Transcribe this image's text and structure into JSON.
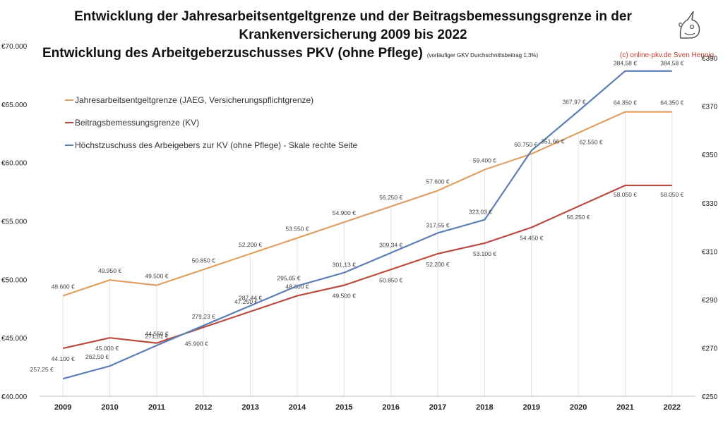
{
  "title_line1": "Entwicklung der Jahresarbeitsentgeltgrenze und der Beitragsbemessungsgrenze in der",
  "title_line2": "Krankenversicherung 2009 bis 2022",
  "title_line3": "Entwicklung des Arbeitgeberzuschusses PKV (ohne Pflege)",
  "note": "(vorläufiger GKV Durchschnittsbeitrag 1,3%)",
  "credit": "(c) online-pkv.de Sven Hennig",
  "chart_data": {
    "type": "line",
    "categories": [
      "2009",
      "2010",
      "2011",
      "2012",
      "2013",
      "2014",
      "2015",
      "2016",
      "2017",
      "2018",
      "2019",
      "2020",
      "2021",
      "2022"
    ],
    "y_left": {
      "min": 40000,
      "max": 70000,
      "ticks": [
        40000,
        45000,
        50000,
        55000,
        60000,
        65000,
        70000
      ],
      "tick_labels": [
        "€40.000",
        "€45.000",
        "€50.000",
        "€55.000",
        "€60.000",
        "€65.000",
        "€70.000"
      ]
    },
    "y_right": {
      "min": 250,
      "max": 395,
      "ticks": [
        250,
        270,
        290,
        310,
        330,
        350,
        370,
        390
      ],
      "tick_labels": [
        "€250",
        "€270",
        "€290",
        "€310",
        "€330",
        "€350",
        "€370",
        "€390"
      ]
    },
    "series": [
      {
        "name": "Jahresarbeitsentgeltgrenze (JAEG, Versicherungspflichtgrenze)",
        "axis": "left",
        "color": "#E0A064",
        "values": [
          48600,
          49950,
          49500,
          50850,
          52200,
          53550,
          54900,
          56250,
          57600,
          59400,
          60750,
          62550,
          64350,
          64350
        ],
        "labels": [
          "48.600 €",
          "49.950 €",
          "49.500 €",
          "50.850 €",
          "52.200 €",
          "53.550 €",
          "54.900 €",
          "56.250 €",
          "57.600 €",
          "59.400 €",
          "60.750 €",
          "62.550 €",
          "64.350 €",
          "64.350 €"
        ]
      },
      {
        "name": "Beitragsbemessungsgrenze (KV)",
        "axis": "left",
        "color": "#B94B40",
        "values": [
          44100,
          45000,
          44550,
          45900,
          47250,
          48600,
          49500,
          50850,
          52200,
          53100,
          54450,
          56250,
          58050,
          58050
        ],
        "labels": [
          "44.100 €",
          "45.000 €",
          "44.550 €",
          "45.900 €",
          "47.250 €",
          "48.600 €",
          "49.500 €",
          "50.850 €",
          "52.200 €",
          "53.100 €",
          "54.450 €",
          "56.250 €",
          "58.050 €",
          "58.050 €"
        ]
      },
      {
        "name": "Höchstzuschuss des Arbeigebers zur KV (ohne Pflege) - Skale rechte Seite",
        "axis": "right",
        "color": "#5B7FB5",
        "values": [
          257.25,
          262.5,
          271.01,
          279.23,
          287.44,
          295.65,
          301.13,
          309.34,
          317.55,
          323.03,
          351.66,
          367.97,
          384.58,
          384.58
        ],
        "labels": [
          "257,25 €",
          "262,50 €",
          "271,01 €",
          "279,23 €",
          "287,44 €",
          "295,65 €",
          "301,13 €",
          "309,34 €",
          "317,55 €",
          "323,03 €",
          "351,66 €",
          "367,97 €",
          "384,58 €",
          "384,58 €"
        ]
      }
    ],
    "legend_position": "top-left"
  }
}
